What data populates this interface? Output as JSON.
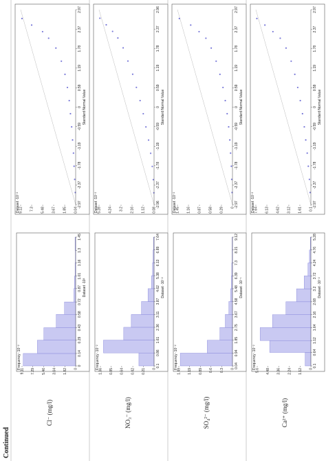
{
  "header": {
    "label": "Continued"
  },
  "rows": [
    {
      "label": "Cl⁻ (mg/l)",
      "histogram": {
        "freq_label": "Frequency ·10⁻²",
        "freq_ticks": [
          0,
          1.82,
          3.64,
          5.46,
          7.29,
          9.11
        ],
        "dataset_label": "Dataset ·10³",
        "dataset_ticks": [
          0,
          0.14,
          0.29,
          0.43,
          0.58,
          0.72,
          0.87,
          1.01,
          1.16,
          1.3,
          1.45
        ],
        "bars": [
          8.9,
          6.5,
          5.4,
          3.3,
          1.9,
          0.3,
          0.2,
          0.1,
          0.05,
          0.1
        ]
      },
      "qq": {
        "dataset_label": "Dataset ·10⁻²",
        "dataset_ticks": [
          0.04,
          1.85,
          3.67,
          5.48,
          7.3,
          9.12
        ],
        "snv_label": "Standard Normal Value",
        "snv_ticks": [
          -2.97,
          -2.37,
          -1.78,
          -1.19,
          -0.59,
          0,
          0.59,
          1.19,
          1.78,
          2.37,
          2.97
        ],
        "snv": [
          -2.6,
          -2.2,
          -1.8,
          -1.4,
          -1.0,
          -0.6,
          -0.2,
          0.2,
          0.6,
          1.0,
          1.4,
          1.8,
          2.1,
          2.3,
          2.5,
          2.7
        ],
        "data": [
          0.1,
          0.2,
          0.3,
          0.4,
          0.55,
          0.7,
          0.9,
          1.1,
          1.4,
          1.8,
          2.4,
          3.3,
          4.5,
          5.5,
          7.3,
          8.9
        ]
      }
    },
    {
      "label": "NO₃⁻ (mg/l)",
      "histogram": {
        "freq_label": "Frequency ·10⁻²",
        "freq_ticks": [
          0,
          0.21,
          0.42,
          0.64,
          0.85,
          1.06
        ],
        "dataset_label": "Dataset ·10⁻²",
        "dataset_ticks": [
          0.1,
          0.86,
          1.61,
          2.36,
          3.11,
          3.87,
          4.62,
          5.38,
          6.13,
          6.89,
          7.64
        ],
        "bars": [
          0.3,
          1.0,
          0.6,
          0.45,
          0.25,
          0.12,
          0.05,
          0.03,
          0.02,
          0.01
        ]
      },
      "qq": {
        "dataset_label": "Dataset ·10⁻²",
        "dataset_ticks": [
          0.08,
          1.12,
          2.16,
          3.2,
          4.24,
          5.28
        ],
        "snv_label": "Standard Normal Value",
        "snv_ticks": [
          -2.96,
          -2.37,
          -1.78,
          -1.19,
          -0.59,
          0,
          0.59,
          1.19,
          1.78,
          2.37,
          2.96
        ],
        "snv": [
          -2.6,
          -2.2,
          -1.8,
          -1.4,
          -1.0,
          -0.6,
          -0.2,
          0.2,
          0.6,
          1.0,
          1.4,
          1.8,
          2.1,
          2.3,
          2.5,
          2.7
        ],
        "data": [
          0.1,
          0.15,
          0.25,
          0.4,
          0.6,
          0.85,
          1.1,
          1.4,
          1.75,
          2.1,
          2.55,
          3.0,
          3.5,
          4.0,
          4.6,
          5.2
        ]
      }
    },
    {
      "label": "SO₄²⁻ (mg/l)",
      "histogram": {
        "freq_label": "Frequency ·10⁻²",
        "freq_ticks": [
          0,
          0.3,
          0.6,
          0.89,
          1.19,
          1.49
        ],
        "dataset_label": "Dataset ·10⁻¹",
        "dataset_ticks": [
          0.04,
          0.94,
          1.85,
          2.75,
          3.67,
          4.58,
          5.48,
          6.39,
          7.3,
          8.21,
          9.12
        ],
        "bars": [
          1.45,
          0.7,
          0.35,
          0.2,
          0.1,
          0.05,
          0.03,
          0.02,
          0.01,
          0.01
        ]
      },
      "qq": {
        "dataset_label": "Dataset ·10⁻²",
        "dataset_ticks": [
          0,
          0.29,
          0.58,
          0.87,
          1.16,
          1.45
        ],
        "snv_label": "Standard Normal Value",
        "snv_ticks": [
          -2.97,
          -2.37,
          -1.78,
          -1.19,
          -0.59,
          0,
          0.59,
          1.19,
          1.78,
          2.37,
          2.97
        ],
        "snv": [
          -2.6,
          -2.2,
          -1.8,
          -1.4,
          -1.0,
          -0.6,
          -0.2,
          0.2,
          0.6,
          1.0,
          1.4,
          1.8,
          2.1,
          2.3,
          2.5,
          2.7
        ],
        "data": [
          0.01,
          0.02,
          0.03,
          0.05,
          0.07,
          0.1,
          0.14,
          0.19,
          0.25,
          0.33,
          0.43,
          0.56,
          0.7,
          0.88,
          1.1,
          1.4
        ]
      }
    },
    {
      "label": "Ca²⁺ (mg/l)",
      "histogram": {
        "freq_label": "Frequency ·10⁻²",
        "freq_ticks": [
          0,
          1.12,
          2.24,
          3.36,
          4.48,
          5.6
        ],
        "dataset_label": "Dataset ·10⁻²",
        "dataset_ticks": [
          0.1,
          0.64,
          1.12,
          1.64,
          2.16,
          2.68,
          3.2,
          3.72,
          4.24,
          4.76,
          5.28
        ],
        "bars": [
          0.6,
          4.3,
          5.3,
          4.0,
          2.6,
          1.5,
          0.7,
          0.3,
          0.15,
          0.05
        ]
      },
      "qq": {
        "dataset_label": "Dataset ·10⁻²",
        "dataset_ticks": [
          0.1,
          1.61,
          3.12,
          4.62,
          6.13,
          7.64
        ],
        "snv_label": "Standard Normal Value",
        "snv_ticks": [
          -2.97,
          -2.37,
          -1.78,
          -1.19,
          -0.59,
          0,
          0.59,
          1.19,
          1.78,
          2.37,
          2.97
        ],
        "snv": [
          -2.6,
          -2.2,
          -1.8,
          -1.4,
          -1.0,
          -0.6,
          -0.2,
          0.2,
          0.6,
          1.0,
          1.4,
          1.8,
          2.1,
          2.3,
          2.5,
          2.7
        ],
        "data": [
          0.2,
          0.3,
          0.45,
          0.6,
          0.8,
          1.0,
          1.25,
          1.55,
          1.9,
          2.3,
          2.8,
          3.5,
          4.3,
          5.3,
          6.4,
          7.5
        ]
      }
    }
  ]
}
